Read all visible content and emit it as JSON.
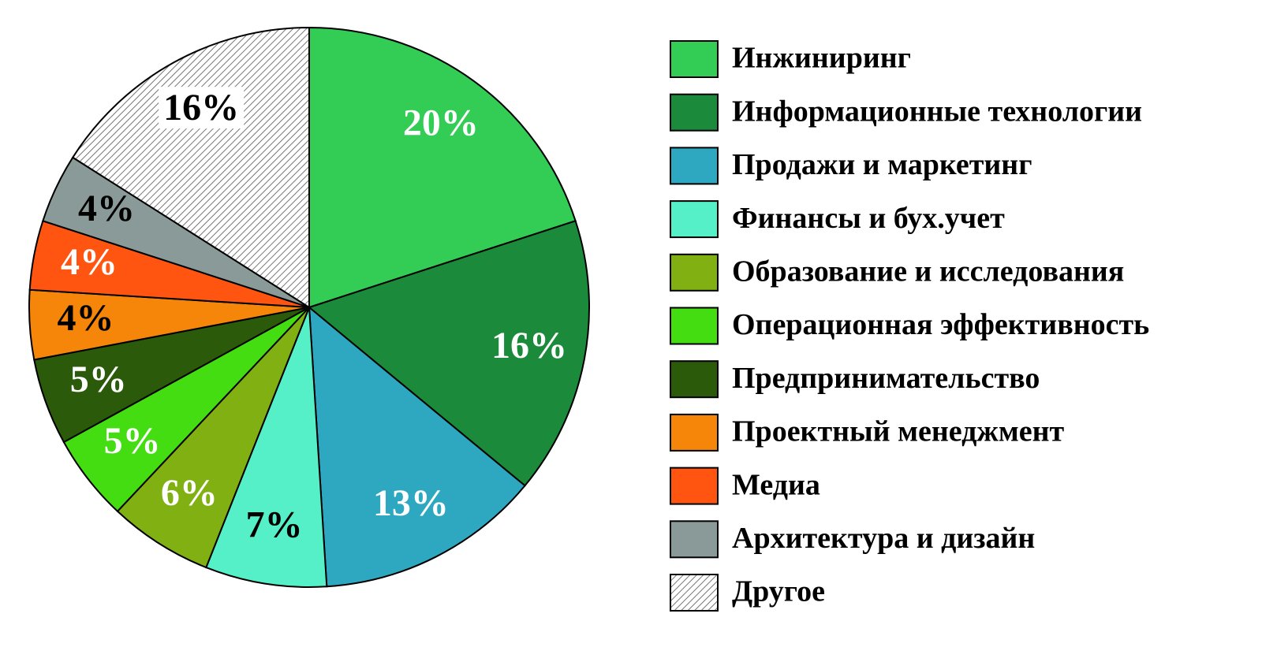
{
  "chart_data": {
    "type": "pie",
    "categories": [
      "Инжиниринг",
      "Информационные технологии",
      "Продажи и маркетинг",
      "Финансы и бух.учет",
      "Образование и исследования",
      "Операционная эффективность",
      "Предпринимательство",
      "Проектный менеджмент",
      "Медиа",
      "Архитектура и дизайн",
      "Другое"
    ],
    "values": [
      20,
      16,
      13,
      7,
      6,
      5,
      5,
      4,
      4,
      4,
      16
    ],
    "value_labels": [
      "20%",
      "16%",
      "13%",
      "7%",
      "6%",
      "5%",
      "5%",
      "4%",
      "4%",
      "4%",
      "16%"
    ],
    "colors": [
      "#33cc55",
      "#1b8b3b",
      "#2ea8c0",
      "#55f0c8",
      "#80b012",
      "#44dd11",
      "#2b5a0b",
      "#f5860a",
      "#ff5510",
      "#8a9a98",
      "#a0a0a0"
    ],
    "patterns": [
      null,
      null,
      null,
      null,
      null,
      null,
      null,
      null,
      null,
      null,
      "hatch"
    ],
    "label_colors": [
      "#ffffff",
      "#ffffff",
      "#ffffff",
      "#000000",
      "#ffffff",
      "#ffffff",
      "#ffffff",
      "#000000",
      "#ffffff",
      "#000000",
      "#000000"
    ],
    "legend": "right"
  }
}
